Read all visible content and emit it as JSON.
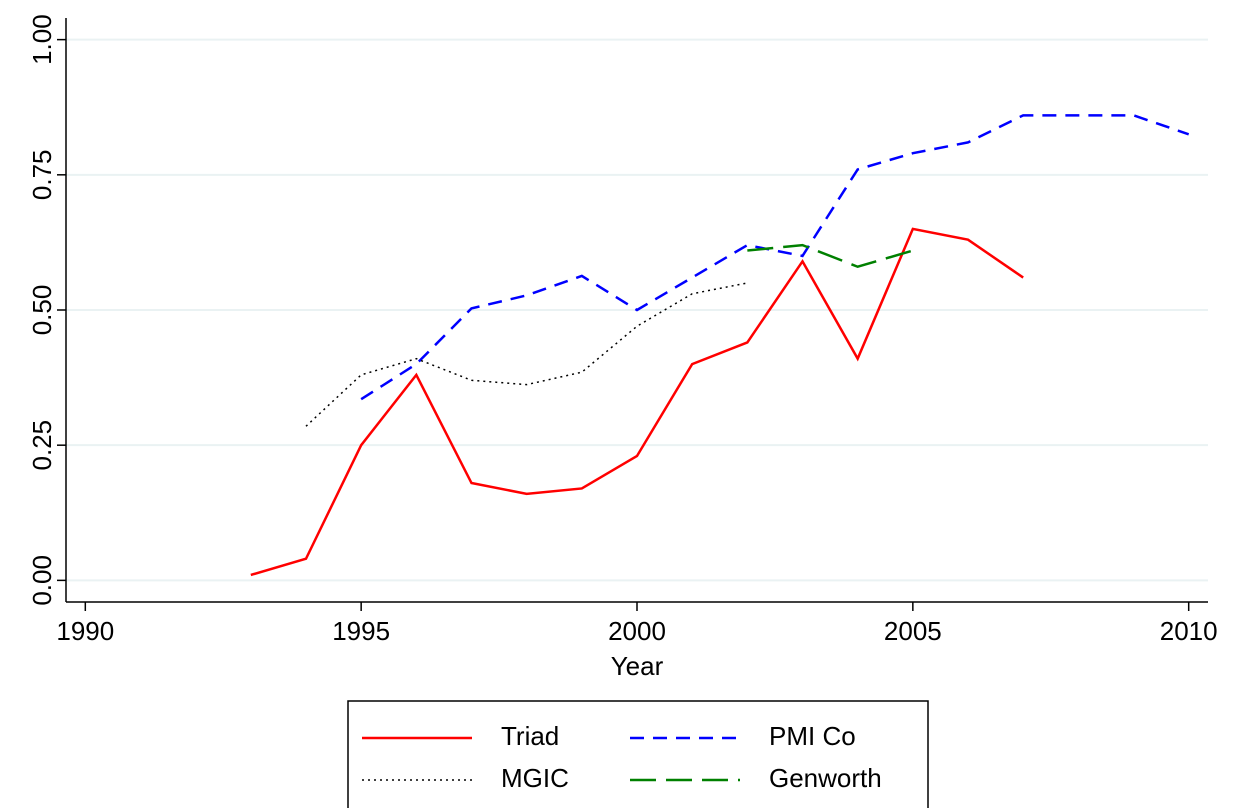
{
  "chart_data": {
    "type": "line",
    "x_label": "Year",
    "x": [
      1993,
      1994,
      1995,
      1996,
      1997,
      1998,
      1999,
      2000,
      2001,
      2002,
      2003,
      2004,
      2005,
      2006,
      2007,
      2008,
      2009,
      2010
    ],
    "series": [
      {
        "name": "Triad",
        "color": "#ff0000",
        "style": "solid",
        "values": [
          0.01,
          0.04,
          0.25,
          0.38,
          0.18,
          0.16,
          0.17,
          0.23,
          0.4,
          0.44,
          0.59,
          0.41,
          0.65,
          0.63,
          0.56,
          null,
          null,
          null
        ]
      },
      {
        "name": "PMI Co",
        "color": "#0000ff",
        "style": "dash",
        "values": [
          null,
          null,
          0.335,
          0.4,
          0.503,
          0.527,
          0.563,
          0.5,
          0.56,
          0.62,
          0.6,
          0.76,
          0.79,
          0.81,
          0.86,
          0.86,
          0.86,
          0.825
        ]
      },
      {
        "name": "MGIC",
        "color": "#000000",
        "style": "dot",
        "values": [
          null,
          0.285,
          0.38,
          0.41,
          0.37,
          0.362,
          0.385,
          0.47,
          0.53,
          0.55,
          null,
          null,
          null,
          null,
          null,
          null,
          null,
          null
        ]
      },
      {
        "name": "Genworth",
        "color": "#008000",
        "style": "longdash",
        "values": [
          null,
          null,
          null,
          null,
          null,
          null,
          null,
          null,
          null,
          0.61,
          0.62,
          0.58,
          0.61,
          null,
          null,
          null,
          null,
          null
        ]
      }
    ],
    "xlim": [
      1989.65,
      2010.35
    ],
    "xticks": [
      1990,
      1995,
      2000,
      2005,
      2010
    ],
    "ylim": [
      -0.04,
      1.04
    ],
    "yticks": [
      {
        "value": 0,
        "label": "0.00"
      },
      {
        "value": 0.25,
        "label": "0.25"
      },
      {
        "value": 0.5,
        "label": "0.50"
      },
      {
        "value": 0.75,
        "label": "0.75"
      },
      {
        "value": 1,
        "label": "1.00"
      }
    ],
    "grid": true,
    "legend": "bottom"
  }
}
